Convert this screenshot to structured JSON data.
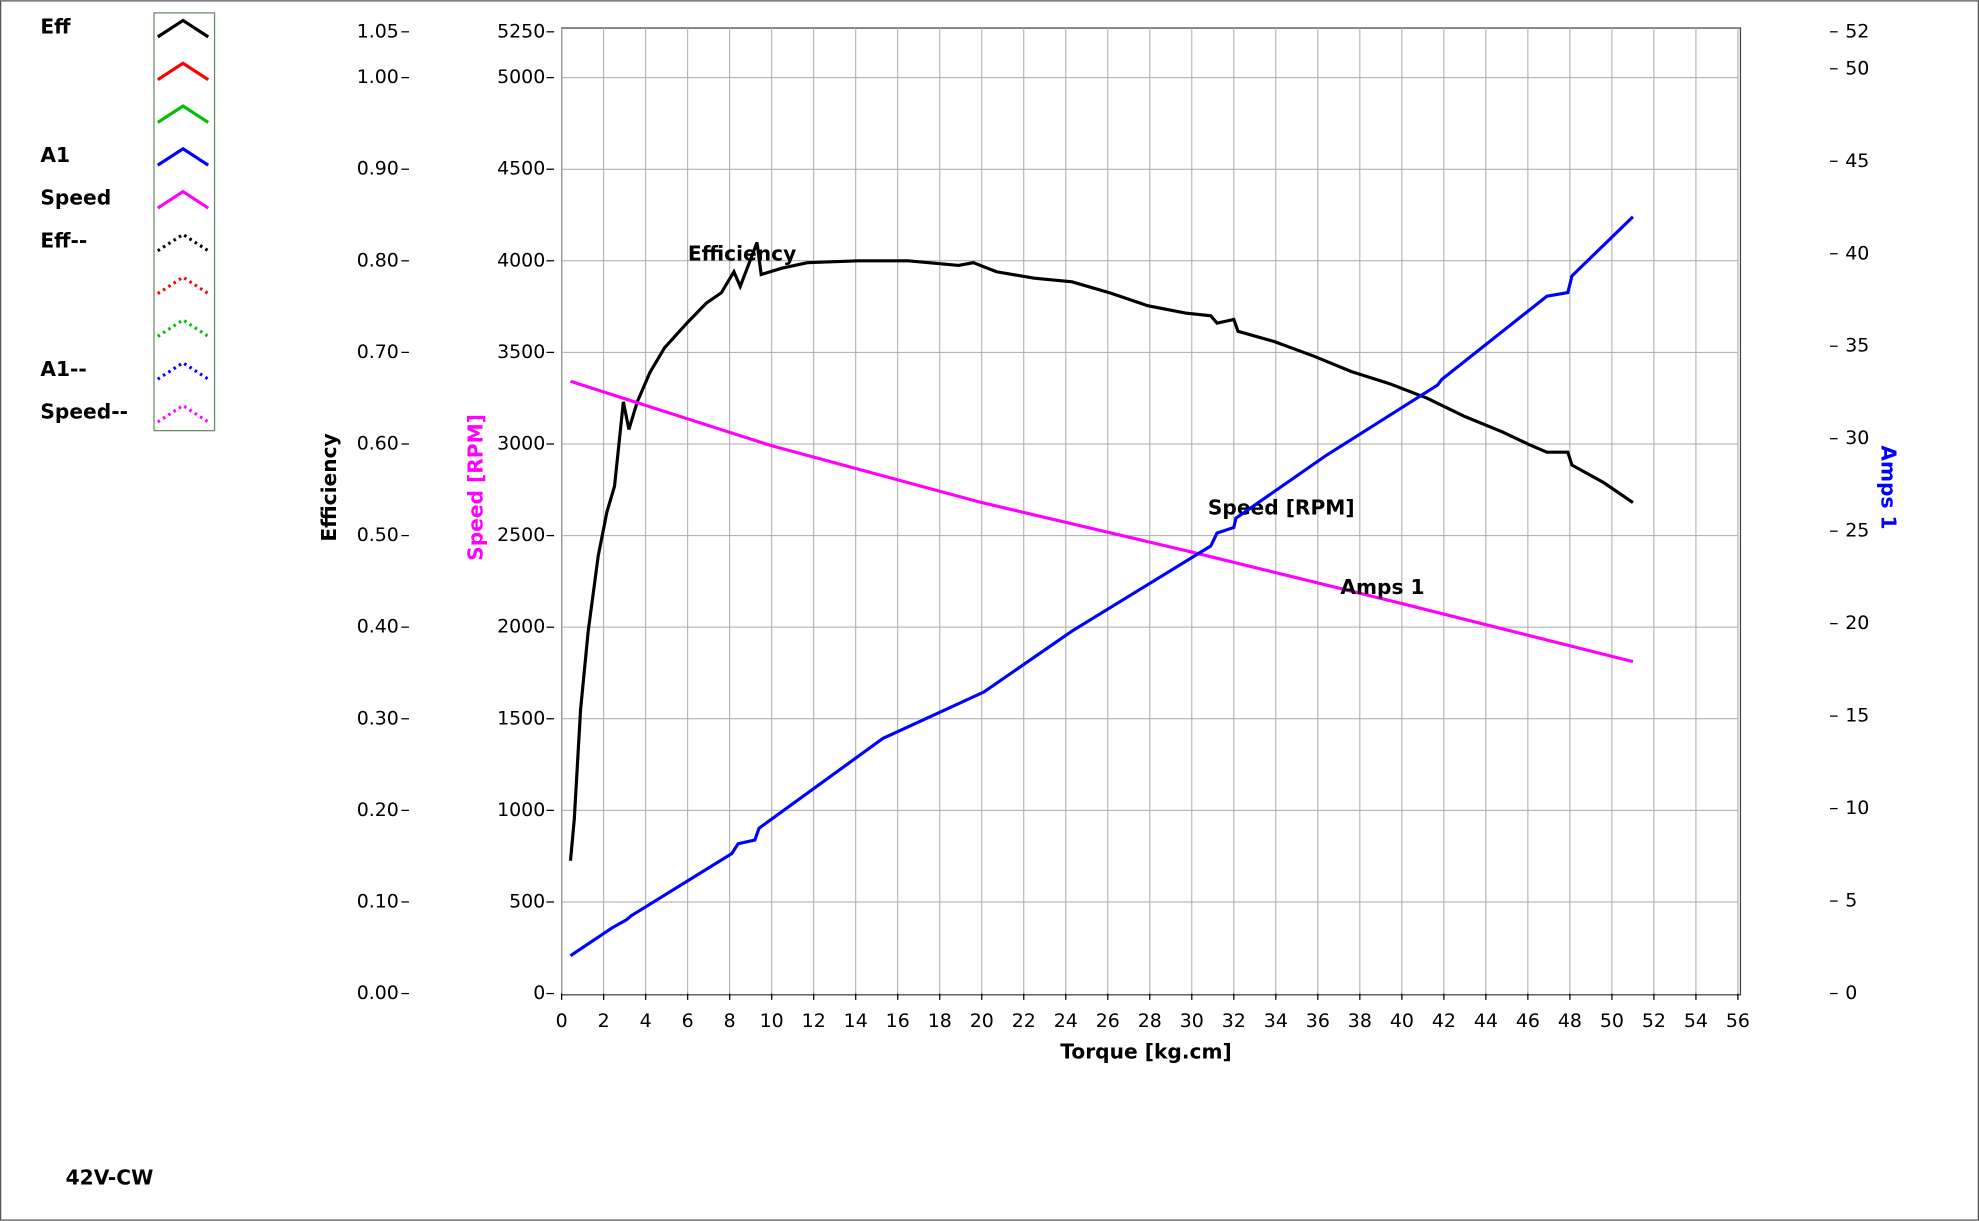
{
  "chart_data": {
    "type": "line",
    "footer": "42V-CW",
    "x_label": "Torque [kg.cm]",
    "xlim": [
      0,
      56
    ],
    "xticks": [
      0,
      2,
      4,
      6,
      8,
      10,
      12,
      14,
      16,
      18,
      20,
      22,
      24,
      26,
      28,
      30,
      32,
      34,
      36,
      38,
      40,
      42,
      44,
      46,
      48,
      50,
      52,
      54,
      56
    ],
    "grid": true,
    "axes": [
      {
        "label": "Efficiency",
        "color": "#000000",
        "lim": [
          0,
          1.05
        ],
        "ticks": [
          {
            "value": 0,
            "label": "0.00"
          },
          {
            "value": 0.1,
            "label": "0.10"
          },
          {
            "value": 0.2,
            "label": "0.20"
          },
          {
            "value": 0.3,
            "label": "0.30"
          },
          {
            "value": 0.4,
            "label": "0.40"
          },
          {
            "value": 0.5,
            "label": "0.50"
          },
          {
            "value": 0.6,
            "label": "0.60"
          },
          {
            "value": 0.7,
            "label": "0.70"
          },
          {
            "value": 0.8,
            "label": "0.80"
          },
          {
            "value": 0.9,
            "label": "0.90"
          },
          {
            "value": 1.0,
            "label": "1.00"
          },
          {
            "value": 1.05,
            "label": "1.05"
          }
        ]
      },
      {
        "label": "Speed [RPM]",
        "color": "#ff00ff",
        "lim": [
          0,
          5250
        ],
        "ticks": [
          0,
          500,
          1000,
          1500,
          2000,
          2500,
          3000,
          3500,
          4000,
          4500,
          5000,
          5250
        ]
      },
      {
        "label": "Amps 1",
        "color": "#0000ff",
        "lim": [
          0,
          52
        ],
        "ticks": [
          0,
          5,
          10,
          15,
          20,
          25,
          30,
          35,
          40,
          45,
          50,
          52
        ]
      }
    ],
    "series": [
      {
        "label": "Efficiency",
        "color": "#000000",
        "axis": 0,
        "x": [
          0.42,
          0.6,
          0.9,
          1.26,
          1.74,
          2.16,
          2.52,
          2.94,
          3.2,
          3.6,
          4.2,
          4.9,
          6.0,
          6.9,
          7.6,
          8.2,
          8.5,
          9.3,
          9.5,
          10.5,
          11.7,
          14.1,
          16.5,
          18.9,
          19.6,
          20.7,
          22.5,
          24.3,
          26.1,
          27.9,
          29.7,
          30.9,
          31.2,
          32.0,
          32.2,
          33.9,
          35.8,
          37.6,
          39.4,
          41.2,
          43.0,
          44.8,
          46.0,
          46.9,
          47.9,
          48.1,
          49.6,
          51.0
        ],
        "values": [
          0.145,
          0.19,
          0.31,
          0.395,
          0.478,
          0.526,
          0.554,
          0.646,
          0.616,
          0.646,
          0.678,
          0.705,
          0.733,
          0.754,
          0.765,
          0.788,
          0.772,
          0.82,
          0.785,
          0.792,
          0.798,
          0.8,
          0.8,
          0.795,
          0.798,
          0.788,
          0.781,
          0.777,
          0.765,
          0.751,
          0.743,
          0.74,
          0.732,
          0.736,
          0.723,
          0.712,
          0.696,
          0.679,
          0.666,
          0.65,
          0.63,
          0.613,
          0.6,
          0.591,
          0.591,
          0.577,
          0.558,
          0.536
        ]
      },
      {
        "label": "Speed [RPM]",
        "color": "#ff00ff",
        "axis": 1,
        "x": [
          0.42,
          10,
          20,
          30,
          40,
          51
        ],
        "values": [
          3342,
          2990,
          2680,
          2410,
          2129,
          1812
        ]
      },
      {
        "label": "Amps 1",
        "color": "#0000ff",
        "axis": 2,
        "x": [
          0.42,
          2.4,
          3.1,
          3.3,
          8.1,
          8.4,
          9.2,
          9.4,
          15.3,
          20.1,
          24.3,
          30.9,
          31.2,
          32.0,
          32.1,
          36.4,
          41.7,
          41.9,
          46.9,
          47.9,
          48.1,
          51.0
        ],
        "values": [
          2.05,
          3.55,
          4.0,
          4.2,
          7.57,
          8.1,
          8.3,
          8.94,
          13.8,
          16.3,
          19.6,
          24.2,
          24.9,
          25.2,
          25.7,
          29.1,
          32.9,
          33.2,
          37.7,
          37.9,
          38.8,
          42.0
        ]
      }
    ],
    "legend": [
      {
        "name": "Eff",
        "color": "#000000",
        "dotted": false
      },
      {
        "color": "#ff0000",
        "dotted": false
      },
      {
        "color": "#00c000",
        "dotted": false
      },
      {
        "name": "A1",
        "color": "#0000ff",
        "dotted": false
      },
      {
        "name": "Speed",
        "color": "#ff00ff",
        "dotted": false
      },
      {
        "name": "Eff--",
        "color": "#000000",
        "dotted": true
      },
      {
        "color": "#ff0000",
        "dotted": true
      },
      {
        "color": "#00c000",
        "dotted": true
      },
      {
        "name": "A1--",
        "color": "#0000ff",
        "dotted": true
      },
      {
        "name": "Speed--",
        "color": "#ff00ff",
        "dotted": true
      }
    ]
  }
}
